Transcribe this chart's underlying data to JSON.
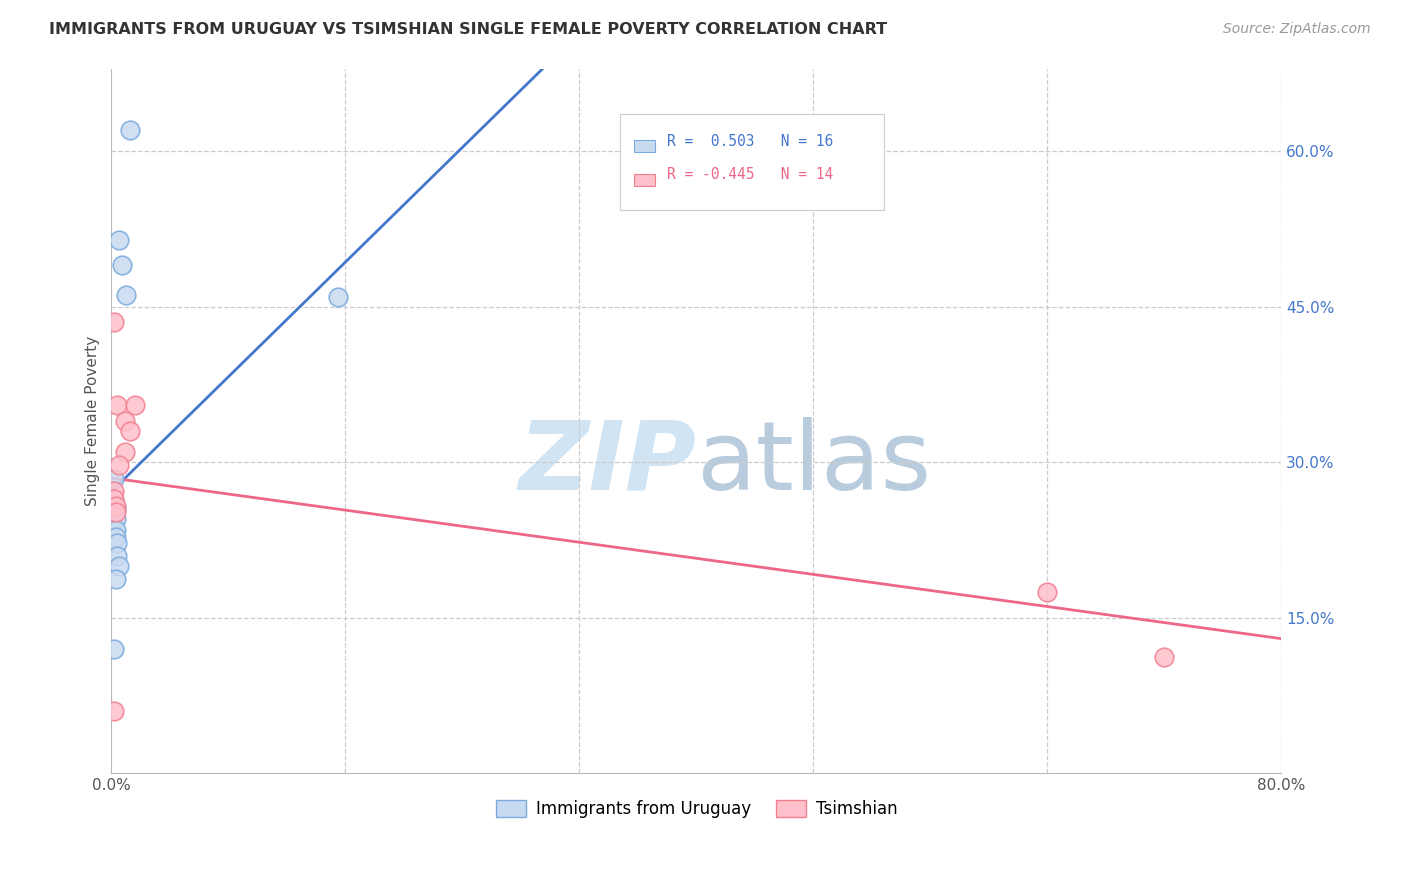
{
  "title": "IMMIGRANTS FROM URUGUAY VS TSIMSHIAN SINGLE FEMALE POVERTY CORRELATION CHART",
  "source": "Source: ZipAtlas.com",
  "ylabel": "Single Female Poverty",
  "legend_blue_r": "R =  0.503",
  "legend_blue_n": "N = 16",
  "legend_pink_r": "R = -0.445",
  "legend_pink_n": "N = 14",
  "legend_label_blue": "Immigrants from Uruguay",
  "legend_label_pink": "Tsimshian",
  "xlim": [
    0.0,
    0.8
  ],
  "ylim": [
    0.0,
    0.68
  ],
  "yticks": [
    0.15,
    0.3,
    0.45,
    0.6
  ],
  "ytick_labels": [
    "15.0%",
    "30.0%",
    "45.0%",
    "60.0%"
  ],
  "blue_points_x": [
    0.005,
    0.007,
    0.01,
    0.013,
    0.002,
    0.002,
    0.003,
    0.003,
    0.003,
    0.003,
    0.004,
    0.004,
    0.005,
    0.003,
    0.002,
    0.155
  ],
  "blue_points_y": [
    0.515,
    0.49,
    0.462,
    0.621,
    0.284,
    0.263,
    0.255,
    0.245,
    0.235,
    0.228,
    0.222,
    0.21,
    0.2,
    0.188,
    0.12,
    0.46
  ],
  "pink_points_x": [
    0.002,
    0.004,
    0.009,
    0.009,
    0.013,
    0.016,
    0.002,
    0.002,
    0.003,
    0.003,
    0.64,
    0.72,
    0.002,
    0.005
  ],
  "pink_points_y": [
    0.435,
    0.355,
    0.34,
    0.31,
    0.33,
    0.355,
    0.272,
    0.265,
    0.258,
    0.252,
    0.175,
    0.112,
    0.06,
    0.298
  ],
  "blue_line_x": [
    0.0,
    0.295
  ],
  "blue_line_y": [
    0.272,
    0.68
  ],
  "pink_line_x": [
    0.0,
    0.8
  ],
  "pink_line_y": [
    0.285,
    0.13
  ],
  "bg_color": "#ffffff",
  "blue_scatter_face": "#c8daf0",
  "blue_scatter_edge": "#7aaadd",
  "pink_scatter_face": "#ffc0cb",
  "pink_scatter_edge": "#f08090",
  "blue_line_color": "#4477cc",
  "pink_line_color": "#ee6688",
  "grid_color": "#cccccc",
  "right_tick_color": "#4477cc",
  "watermark_zip_color": "#d0e4f4",
  "watermark_atlas_color": "#b8ccdd"
}
